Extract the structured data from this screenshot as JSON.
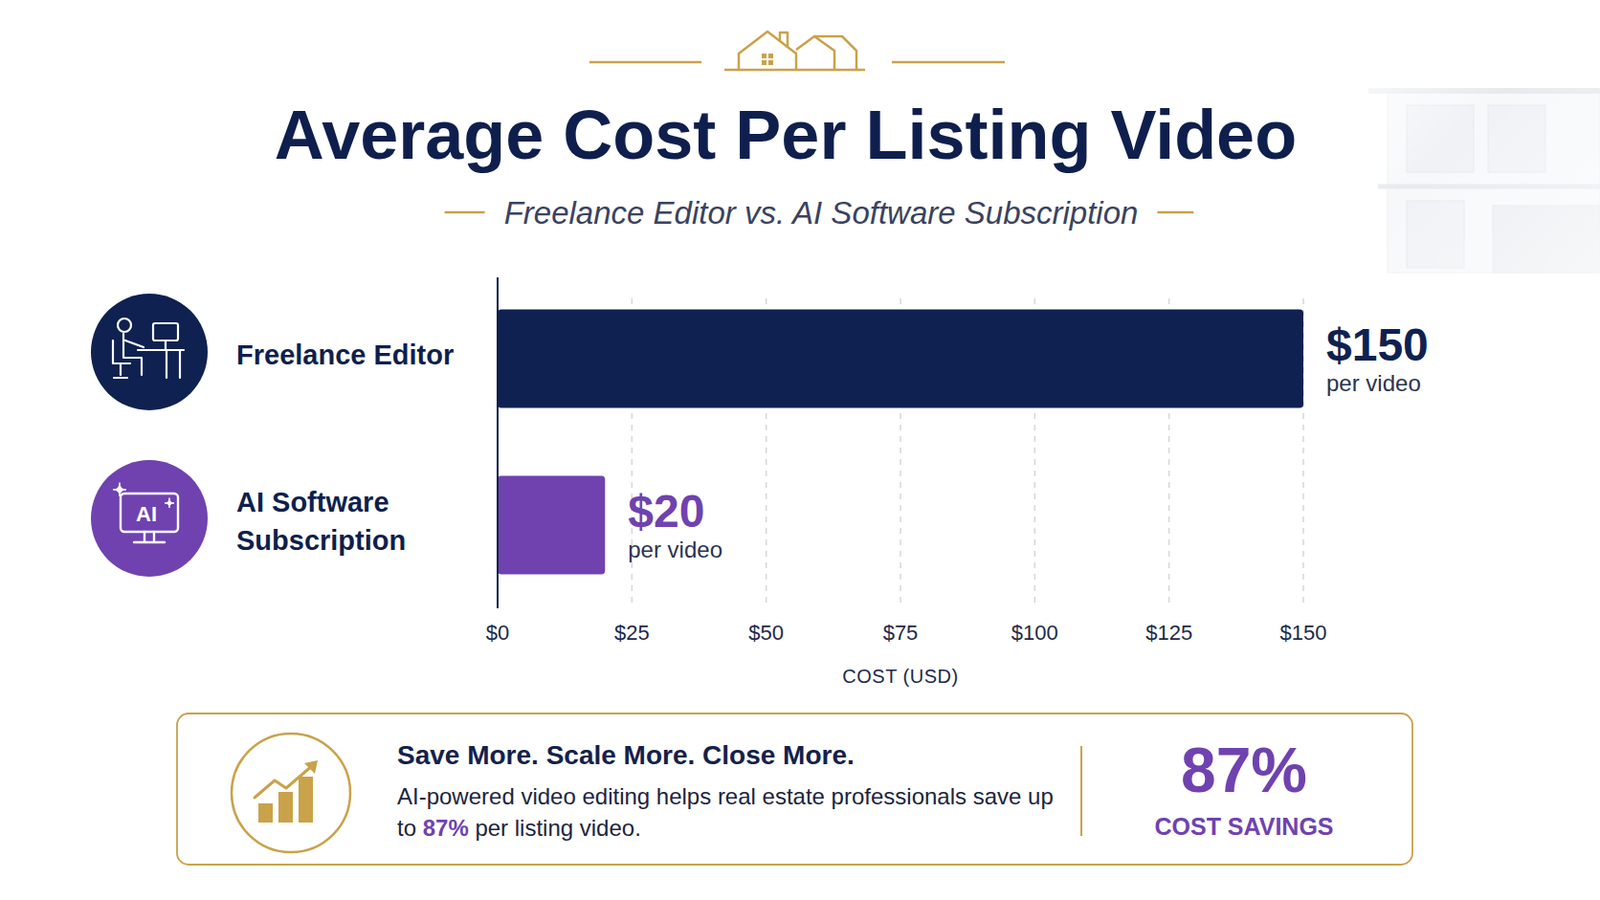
{
  "chart_data": {
    "type": "bar",
    "orientation": "horizontal",
    "title": "Average Cost Per Listing Video",
    "subtitle": "Freelance Editor vs. AI Software Subscription",
    "x_label": "COST (USD)",
    "categories": [
      "Freelance Editor",
      "AI Software Subscription"
    ],
    "values": [
      150,
      20
    ],
    "value_labels": [
      "$150",
      "$20"
    ],
    "value_label_note": "per video",
    "colors": [
      "#0f2150",
      "#6f42b0"
    ],
    "xlim": [
      0,
      150
    ],
    "xticks": [
      {
        "value": 0,
        "label": "$0"
      },
      {
        "value": 25,
        "label": "$25"
      },
      {
        "value": 50,
        "label": "$50"
      },
      {
        "value": 75,
        "label": "$75"
      },
      {
        "value": 100,
        "label": "$100"
      },
      {
        "value": 125,
        "label": "$125"
      },
      {
        "value": 150,
        "label": "$150"
      }
    ],
    "grid": true,
    "data_labels": true
  },
  "icon_text": "AI",
  "callout": {
    "headline": "Save More. Scale More. Close More.",
    "body_before": "AI-powered video editing helps real estate professionals save up to ",
    "body_highlight": "87%",
    "body_after": " per listing video.",
    "stat": "87%",
    "stat_label": "COST SAVINGS"
  }
}
